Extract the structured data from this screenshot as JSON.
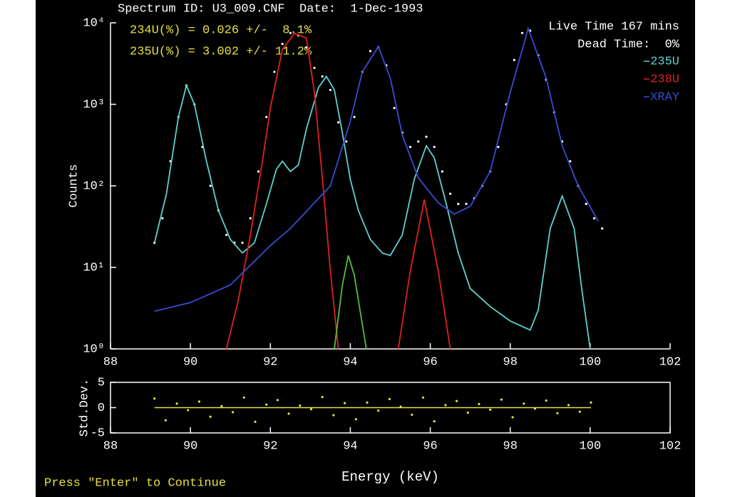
{
  "title": "Spectrum ID: U3_009.CNF  Date:  1-Dec-1993",
  "prompt": "Press \"Enter\" to Continue",
  "chart_data": [
    {
      "type": "line",
      "y_label": "Counts",
      "log_y": true,
      "annotations": [
        "234U(%) = 0.026 +/-  8.1%",
        "235U(%) = 3.002 +/- 11.2%"
      ],
      "info": [
        "Live Time 167 mins",
        "Dead Time:  0%"
      ],
      "legend": "upper right",
      "xlim": [
        88,
        102
      ],
      "xticks": [
        88,
        90,
        92,
        94,
        96,
        98,
        100,
        102
      ],
      "ylim": [
        1,
        10000
      ],
      "yticks": [
        {
          "value": 1,
          "label": "10⁰"
        },
        {
          "value": 10,
          "label": "10¹"
        },
        {
          "value": 100,
          "label": "10²"
        },
        {
          "value": 1000,
          "label": "10³"
        },
        {
          "value": 10000,
          "label": "10⁴"
        }
      ],
      "series": [
        {
          "style": "points",
          "color": "#ffffff",
          "x": [
            89.1,
            89.3,
            89.5,
            89.7,
            89.9,
            90.1,
            90.3,
            90.5,
            90.7,
            90.9,
            91.1,
            91.3,
            91.5,
            91.7,
            91.9,
            92.1,
            92.3,
            92.5,
            92.7,
            92.9,
            93.1,
            93.3,
            93.5,
            93.7,
            93.9,
            94.1,
            94.3,
            94.5,
            94.7,
            94.9,
            95.1,
            95.3,
            95.5,
            95.7,
            95.9,
            96.1,
            96.3,
            96.5,
            96.7,
            96.9,
            97.1,
            97.3,
            97.5,
            97.7,
            97.9,
            98.1,
            98.3,
            98.5,
            98.7,
            98.9,
            99.1,
            99.3,
            99.5,
            99.7,
            99.9,
            100.1,
            100.3
          ],
          "values": [
            20,
            40,
            200,
            700,
            1700,
            1000,
            300,
            100,
            50,
            25,
            20,
            20,
            40,
            150,
            700,
            2500,
            5500,
            7500,
            7000,
            5000,
            2800,
            2200,
            1500,
            600,
            350,
            700,
            2500,
            4500,
            5000,
            3000,
            900,
            450,
            300,
            350,
            400,
            300,
            150,
            80,
            60,
            60,
            70,
            100,
            150,
            300,
            1000,
            3500,
            7500,
            8000,
            4000,
            2000,
            800,
            350,
            200,
            100,
            60,
            40,
            30
          ]
        },
        {
          "name": "235U",
          "style": "line",
          "color": "#5fd0d0",
          "x": [
            89.1,
            89.4,
            89.7,
            89.9,
            90.1,
            90.4,
            90.7,
            91.0,
            91.3,
            91.6,
            91.9,
            92.15,
            92.3,
            92.5,
            92.7,
            92.9,
            93.2,
            93.4,
            93.6,
            93.8,
            94.0,
            94.2,
            94.5,
            94.8,
            95.0,
            95.3,
            95.6,
            95.9,
            96.1,
            96.4,
            96.7,
            97.0,
            97.5,
            98.0,
            98.5,
            98.7,
            99.0,
            99.3,
            99.6,
            99.8,
            100.0
          ],
          "values": [
            20,
            80,
            700,
            1700,
            1000,
            200,
            50,
            22,
            15,
            20,
            60,
            160,
            200,
            150,
            180,
            500,
            1600,
            2200,
            1500,
            450,
            120,
            50,
            22,
            15,
            14,
            25,
            120,
            310,
            220,
            60,
            15,
            5.5,
            3.3,
            2.2,
            1.7,
            3,
            30,
            75,
            30,
            5,
            1
          ]
        },
        {
          "name": "238U",
          "style": "line",
          "color": "#e02020",
          "x": [
            90.9,
            91.2,
            91.5,
            91.8,
            92.0,
            92.3,
            92.6,
            92.9,
            93.1,
            93.3,
            93.5,
            93.7,
            94.5,
            95.2,
            95.5,
            95.85,
            96.2,
            96.5
          ],
          "values": [
            1,
            4,
            25,
            200,
            900,
            4700,
            7400,
            6500,
            1400,
            125,
            9,
            1,
            null,
            1,
            9,
            68,
            9,
            1
          ]
        },
        {
          "name": "XRAY",
          "style": "line",
          "color": "#3a4bd0",
          "x": [
            89.1,
            90.0,
            91.0,
            92.0,
            92.5,
            93.5,
            94.0,
            94.3,
            94.7,
            95.0,
            95.3,
            95.7,
            96.2,
            96.6,
            97.0,
            97.5,
            98.0,
            98.45,
            98.9,
            99.3,
            99.7,
            100.2
          ],
          "values": [
            2.9,
            3.7,
            6.1,
            18.5,
            30,
            100,
            620,
            2500,
            5100,
            2100,
            420,
            125,
            62,
            45,
            56,
            150,
            1400,
            8500,
            2100,
            310,
            100,
            37
          ]
        },
        {
          "style": "line",
          "color": "#50c040",
          "x": [
            93.6,
            93.8,
            93.95,
            94.1,
            94.4
          ],
          "values": [
            1,
            6,
            14,
            8,
            1
          ]
        }
      ]
    },
    {
      "type": "scatter",
      "y_label": "Std.Dev.",
      "x_label": "Energy (keV)",
      "xlim": [
        88,
        102
      ],
      "xticks": [
        88,
        90,
        92,
        94,
        96,
        98,
        100,
        102
      ],
      "ylim": [
        -5,
        5
      ],
      "yticks": [
        -5,
        0,
        5
      ],
      "series": [
        {
          "style": "points",
          "color": "#e8e040",
          "x": [
            89.1,
            89.38,
            89.66,
            89.94,
            90.22,
            90.5,
            90.78,
            91.06,
            91.34,
            91.62,
            91.9,
            92.18,
            92.46,
            92.74,
            93.02,
            93.3,
            93.58,
            93.86,
            94.14,
            94.42,
            94.7,
            94.98,
            95.26,
            95.54,
            95.82,
            96.1,
            96.38,
            96.66,
            96.94,
            97.22,
            97.5,
            97.78,
            98.06,
            98.34,
            98.62,
            98.9,
            99.18,
            99.46,
            99.74,
            100.02
          ],
          "values": [
            1.8,
            -2.5,
            0.8,
            -0.5,
            1.2,
            -1.8,
            0.3,
            -0.9,
            2.0,
            -2.8,
            0.6,
            1.5,
            -1.2,
            0.4,
            -0.3,
            2.1,
            -1.5,
            0.9,
            -2.3,
            1.0,
            -0.6,
            1.7,
            0.2,
            -1.4,
            2.0,
            -2.7,
            0.5,
            1.3,
            -1.0,
            0.7,
            -0.4,
            1.6,
            -1.9,
            0.8,
            -0.2,
            1.4,
            -1.1,
            0.5,
            -0.8,
            1.0
          ]
        }
      ]
    }
  ]
}
